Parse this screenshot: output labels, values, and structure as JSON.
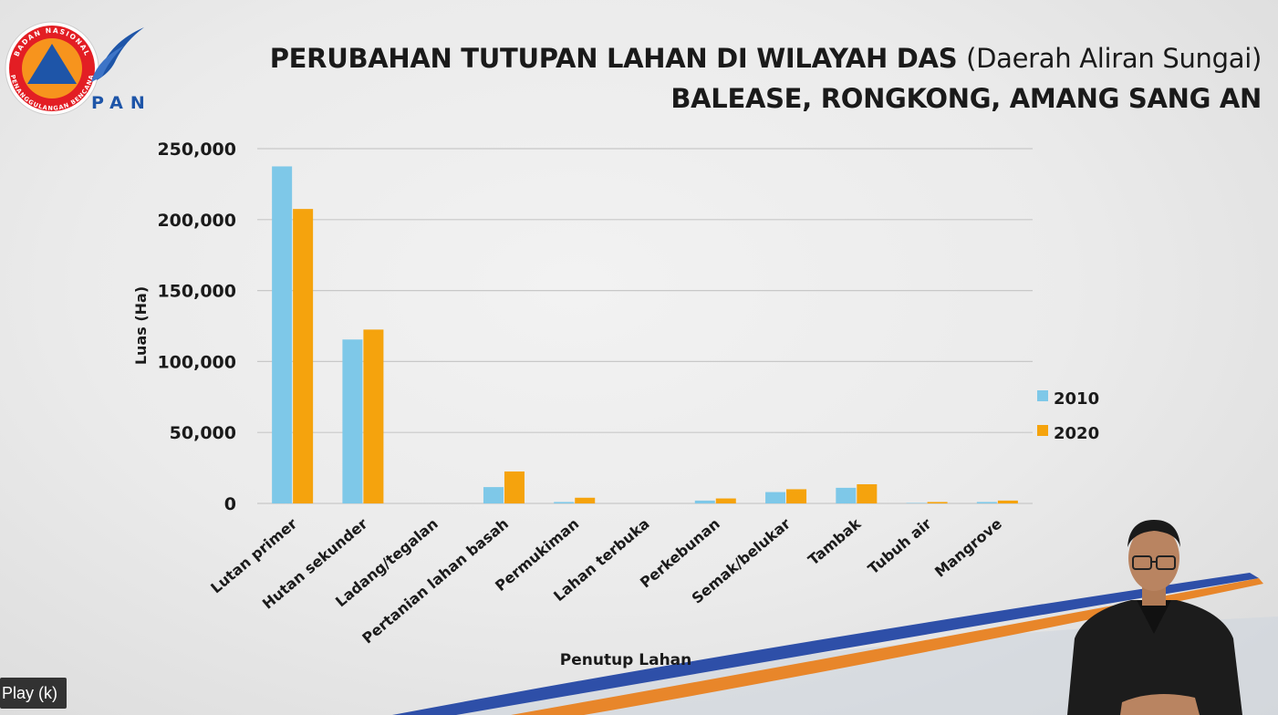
{
  "header": {
    "title_line1_main": "PERUBAHAN TUTUPAN LAHAN DI WILAYAH DAS ",
    "title_line1_paren": "(Daerah Aliran Sungai)",
    "title_line2": "BALEASE, RONGKONG, AMANG SANG AN"
  },
  "logo": {
    "ring_text_top": "BADAN NASIONAL",
    "ring_text_bottom": "PENANGGULANGAN BENCANA",
    "sub_text": "PAN",
    "colors": {
      "ring": "#e31e24",
      "disc": "#f7941d",
      "triangle": "#1e55a8"
    }
  },
  "player": {
    "play_label": "Play (k)"
  },
  "colors": {
    "series_2010": "#7ec8e8",
    "series_2020": "#f5a30d",
    "grid": "#c8c8c8",
    "swoosh_blue": "#2e4fa8",
    "swoosh_orange": "#e8862a"
  },
  "chart_data": {
    "type": "bar",
    "title": "",
    "xlabel": "Penutup Lahan",
    "ylabel": "Luas (Ha)",
    "ylim": [
      0,
      250000
    ],
    "yticks": [
      0,
      50000,
      100000,
      150000,
      200000,
      250000
    ],
    "ytick_labels": [
      "0",
      "50,000",
      "100,000",
      "150,000",
      "200,000",
      "250,000"
    ],
    "grid": true,
    "legend_position": "right",
    "categories": [
      "Lutan primer",
      "Hutan sekunder",
      "Ladang/tegalan",
      "Pertanian lahan basah",
      "Permukiman",
      "Lahan terbuka",
      "Perkebunan",
      "Semak/belukar",
      "Tambak",
      "Tubuh air",
      "Mangrove"
    ],
    "series": [
      {
        "name": "2010",
        "values": [
          237500,
          115500,
          0,
          11500,
          1000,
          0,
          2000,
          8000,
          11000,
          300,
          1000
        ]
      },
      {
        "name": "2020",
        "values": [
          207500,
          122500,
          0,
          22500,
          4000,
          0,
          3500,
          10000,
          13500,
          1000,
          2000
        ]
      }
    ]
  }
}
